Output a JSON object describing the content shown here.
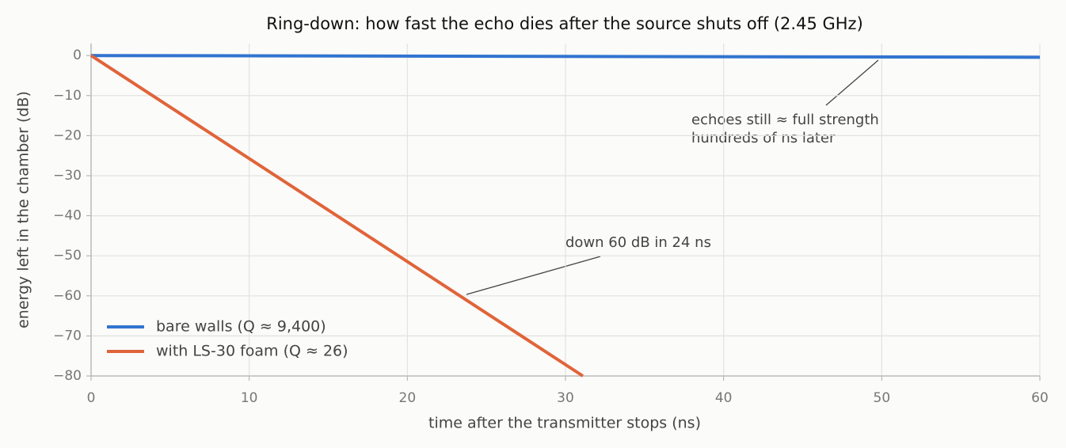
{
  "chart_data": {
    "type": "line",
    "title": "Ring-down: how fast the echo dies after the source shuts off (2.45 GHz)",
    "xlabel": "time after the transmitter stops (ns)",
    "ylabel": "energy left in the chamber (dB)",
    "xlim": [
      0,
      60
    ],
    "xticks": [
      0,
      10,
      20,
      30,
      40,
      50,
      60
    ],
    "ylim": [
      -80,
      3
    ],
    "yticks": [
      0,
      {
        "value": -10,
        "label": "−10"
      },
      {
        "value": -20,
        "label": "−20"
      },
      {
        "value": -30,
        "label": "−30"
      },
      {
        "value": -40,
        "label": "−40"
      },
      {
        "value": -50,
        "label": "−50"
      },
      {
        "value": -60,
        "label": "−60"
      },
      {
        "value": -70,
        "label": "−70"
      },
      {
        "value": -80,
        "label": "−80"
      }
    ],
    "grid": true,
    "legend": "lower left",
    "series": [
      {
        "name": "bare walls  (Q ≈ 9,400)",
        "color": "#3174d0",
        "x": [
          0,
          60
        ],
        "values": [
          0,
          -0.43
        ]
      },
      {
        "name": "with LS-30 foam  (Q ≈ 26)",
        "color": "#e0643a",
        "x": [
          0,
          31.1
        ],
        "values": [
          0,
          -80
        ]
      }
    ],
    "annotations": [
      {
        "lines": [
          "echoes still ≈ full strength",
          "hundreds of ns later"
        ]
      },
      {
        "lines": [
          "down 60 dB in 24 ns"
        ]
      }
    ]
  }
}
